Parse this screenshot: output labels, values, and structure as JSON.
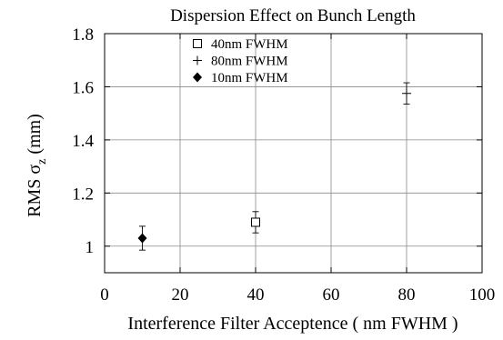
{
  "chart_data": {
    "type": "scatter",
    "title": "Dispersion Effect on Bunch Length",
    "xlabel": "Interference Filter Acceptence ( nm FWHM )",
    "ylabel_main": "RMS  σ",
    "ylabel_sub": "z",
    "ylabel_unit": " (mm)",
    "xlim": [
      0,
      100
    ],
    "ylim": [
      0.9,
      1.8
    ],
    "xticks": [
      "0",
      "20",
      "40",
      "60",
      "80",
      "100"
    ],
    "yticks": [
      "1",
      "1.2",
      "1.4",
      "1.6",
      "1.8"
    ],
    "grid": true,
    "legend_position": "top-left",
    "series": [
      {
        "name": "40nm FWHM",
        "marker": "open-square",
        "points": [
          {
            "x": 40,
            "y": 1.09,
            "err": 0.04
          }
        ]
      },
      {
        "name": "80nm FWHM",
        "marker": "plus",
        "points": [
          {
            "x": 80,
            "y": 1.575,
            "err": 0.04
          }
        ]
      },
      {
        "name": "10nm FWHM",
        "marker": "filled-diamond",
        "points": [
          {
            "x": 10,
            "y": 1.03,
            "err": 0.045
          }
        ]
      }
    ]
  }
}
